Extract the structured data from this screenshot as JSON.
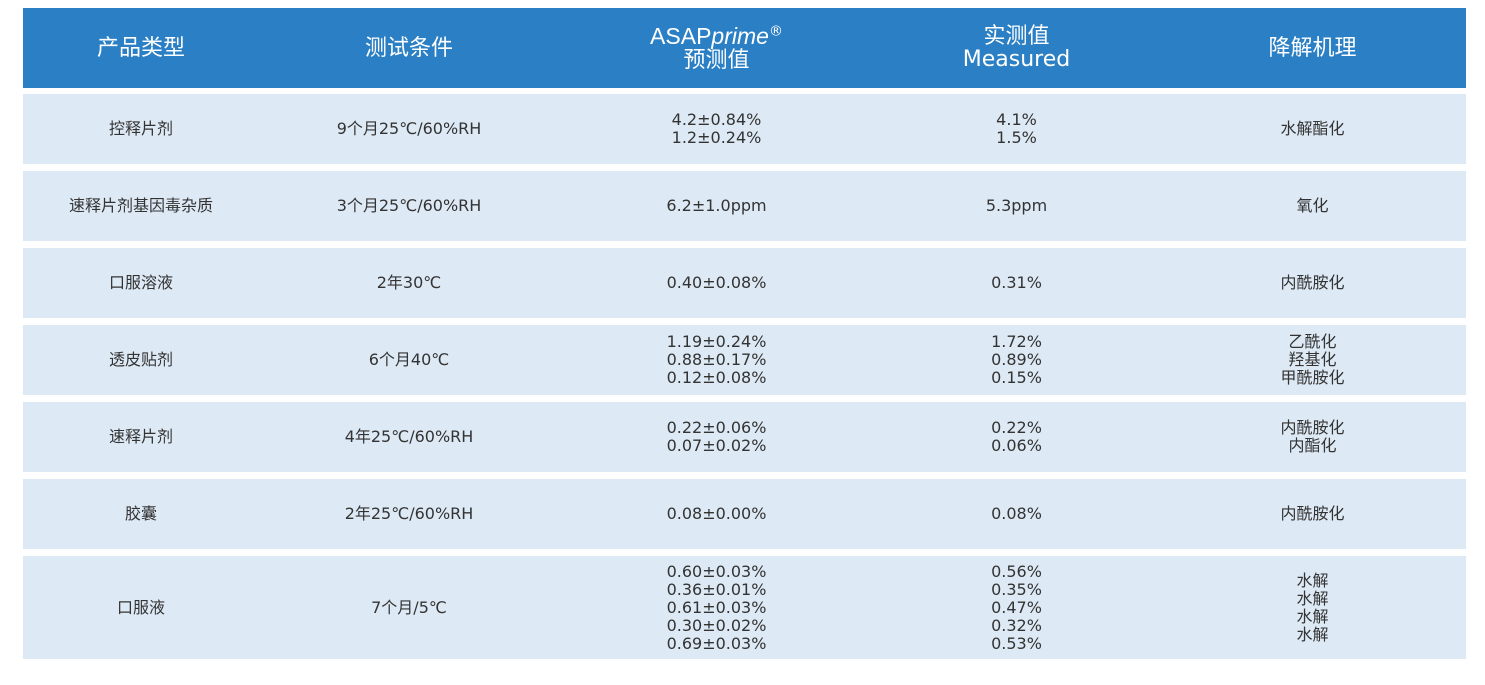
{
  "header": {
    "product_type": "产品类型",
    "test_condition": "测试条件",
    "predicted_brand_main": "ASAP",
    "predicted_brand_italic": "prime",
    "predicted_brand_mark": "®",
    "predicted_label": "预测值",
    "measured_cn": "实测值",
    "measured_en": "Measured",
    "mechanism": "降解机理"
  },
  "colors": {
    "header_bg": "#2b7fc4",
    "row_bg": "#dde9f4",
    "text": "#333333"
  },
  "rows": [
    {
      "product": "控释片剂",
      "condition": "9个月25℃/60%RH",
      "predicted": [
        "4.2±0.84%",
        "1.2±0.24%"
      ],
      "measured": [
        "4.1%",
        "1.5%"
      ],
      "mechanism": [
        "水解酯化"
      ]
    },
    {
      "product": "速释片剂基因毒杂质",
      "condition": "3个月25℃/60%RH",
      "predicted": [
        "6.2±1.0ppm"
      ],
      "measured": [
        "5.3ppm"
      ],
      "mechanism": [
        "氧化"
      ]
    },
    {
      "product": "口服溶液",
      "condition": "2年30℃",
      "predicted": [
        "0.40±0.08%"
      ],
      "measured": [
        "0.31%"
      ],
      "mechanism": [
        "内酰胺化"
      ]
    },
    {
      "product": "透皮贴剂",
      "condition": "6个月40℃",
      "predicted": [
        "1.19±0.24%",
        "0.88±0.17%",
        "0.12±0.08%"
      ],
      "measured": [
        "1.72%",
        "0.89%",
        "0.15%"
      ],
      "mechanism": [
        "乙酰化",
        "羟基化",
        "甲酰胺化"
      ]
    },
    {
      "product": "速释片剂",
      "condition": "4年25℃/60%RH",
      "predicted": [
        "0.22±0.06%",
        "0.07±0.02%"
      ],
      "measured": [
        "0.22%",
        "0.06%"
      ],
      "mechanism": [
        "内酰胺化",
        "内酯化"
      ]
    },
    {
      "product": "胶囊",
      "condition": "2年25℃/60%RH",
      "predicted": [
        "0.08±0.00%"
      ],
      "measured": [
        "0.08%"
      ],
      "mechanism": [
        "内酰胺化"
      ]
    },
    {
      "product": "口服液",
      "condition": "7个月/5℃",
      "predicted": [
        "0.60±0.03%",
        "0.36±0.01%",
        "0.61±0.03%",
        "0.30±0.02%",
        "0.69±0.03%"
      ],
      "measured": [
        "0.56%",
        "0.35%",
        "0.47%",
        "0.32%",
        "0.53%"
      ],
      "mechanism": [
        "水解",
        "水解",
        "水解",
        "水解"
      ]
    }
  ]
}
